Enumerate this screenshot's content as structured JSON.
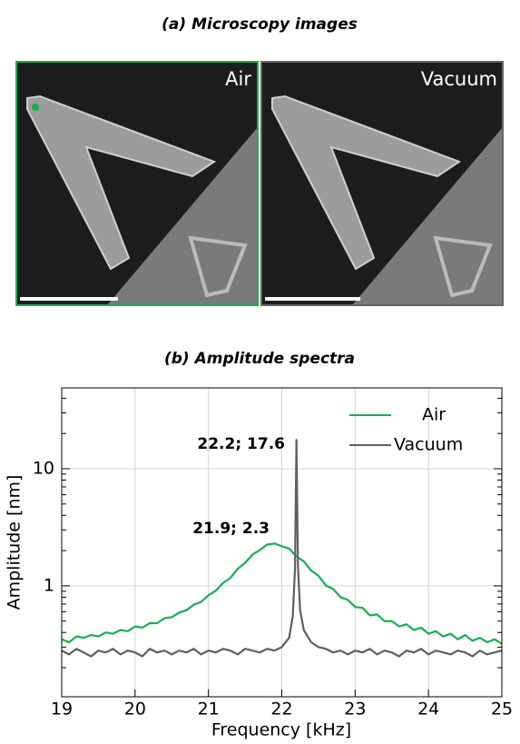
{
  "panel_a": {
    "title": "(a) Microscopy images",
    "labels": [
      "Air",
      "Vacuum"
    ]
  },
  "chart_data": {
    "type": "line",
    "title": "(b) Amplitude spectra",
    "xlabel": "Frequency [kHz]",
    "ylabel": "Amplitude [nm]",
    "xlim": [
      19,
      25
    ],
    "xticks": [
      19,
      20,
      21,
      22,
      23,
      24,
      25
    ],
    "ylim": [
      0.113,
      49
    ],
    "yticks": [
      1,
      10
    ],
    "yscale": "log",
    "yminor_ticks": [
      0.2,
      0.3,
      0.4,
      0.5,
      0.6,
      0.7,
      0.8,
      0.9,
      2,
      3,
      4,
      5,
      6,
      7,
      8,
      9,
      20,
      30,
      40
    ],
    "grid": true,
    "legend": "upper right",
    "series": [
      {
        "name": "Air",
        "color": "#1aae54",
        "x": [
          19.0,
          19.1,
          19.2,
          19.3,
          19.4,
          19.5,
          19.6,
          19.7,
          19.8,
          19.9,
          20.0,
          20.1,
          20.2,
          20.3,
          20.4,
          20.5,
          20.6,
          20.7,
          20.8,
          20.9,
          21.0,
          21.1,
          21.2,
          21.3,
          21.4,
          21.5,
          21.6,
          21.7,
          21.8,
          21.9,
          22.0,
          22.1,
          22.2,
          22.3,
          22.4,
          22.5,
          22.6,
          22.7,
          22.8,
          22.9,
          23.0,
          23.1,
          23.2,
          23.3,
          23.4,
          23.5,
          23.6,
          23.7,
          23.8,
          23.9,
          24.0,
          24.1,
          24.2,
          24.3,
          24.4,
          24.5,
          24.6,
          24.7,
          24.8,
          24.9,
          25.0
        ],
        "values": [
          0.35,
          0.33,
          0.37,
          0.36,
          0.38,
          0.37,
          0.4,
          0.39,
          0.42,
          0.41,
          0.45,
          0.44,
          0.48,
          0.48,
          0.53,
          0.54,
          0.59,
          0.62,
          0.69,
          0.73,
          0.83,
          0.91,
          1.06,
          1.17,
          1.4,
          1.57,
          1.85,
          2.02,
          2.25,
          2.3,
          2.18,
          2.08,
          1.78,
          1.62,
          1.35,
          1.22,
          1.01,
          0.94,
          0.8,
          0.76,
          0.66,
          0.65,
          0.56,
          0.57,
          0.5,
          0.5,
          0.45,
          0.47,
          0.42,
          0.44,
          0.39,
          0.41,
          0.37,
          0.39,
          0.35,
          0.38,
          0.34,
          0.36,
          0.33,
          0.35,
          0.32
        ]
      },
      {
        "name": "Vacuum",
        "color": "#5f5f5f",
        "x": [
          19.0,
          19.1,
          19.2,
          19.3,
          19.4,
          19.5,
          19.6,
          19.7,
          19.8,
          19.9,
          20.0,
          20.1,
          20.2,
          20.3,
          20.4,
          20.5,
          20.6,
          20.7,
          20.8,
          20.9,
          21.0,
          21.1,
          21.2,
          21.3,
          21.4,
          21.5,
          21.6,
          21.7,
          21.8,
          21.9,
          22.0,
          22.1,
          22.15,
          22.18,
          22.2,
          22.22,
          22.25,
          22.3,
          22.4,
          22.5,
          22.6,
          22.7,
          22.8,
          22.9,
          23.0,
          23.1,
          23.2,
          23.3,
          23.4,
          23.5,
          23.6,
          23.7,
          23.8,
          23.9,
          24.0,
          24.1,
          24.2,
          24.3,
          24.4,
          24.5,
          24.6,
          24.7,
          24.8,
          24.9,
          25.0
        ],
        "values": [
          0.28,
          0.26,
          0.29,
          0.27,
          0.25,
          0.28,
          0.27,
          0.29,
          0.26,
          0.28,
          0.27,
          0.25,
          0.29,
          0.27,
          0.28,
          0.26,
          0.28,
          0.27,
          0.29,
          0.26,
          0.28,
          0.27,
          0.29,
          0.28,
          0.26,
          0.29,
          0.28,
          0.27,
          0.29,
          0.28,
          0.3,
          0.36,
          0.55,
          1.4,
          17.6,
          1.5,
          0.62,
          0.42,
          0.33,
          0.3,
          0.29,
          0.27,
          0.28,
          0.26,
          0.28,
          0.27,
          0.29,
          0.26,
          0.28,
          0.27,
          0.25,
          0.28,
          0.27,
          0.29,
          0.26,
          0.28,
          0.27,
          0.26,
          0.28,
          0.27,
          0.25,
          0.28,
          0.26,
          0.27,
          0.28
        ]
      }
    ],
    "annotations": [
      {
        "text": "22.2; 17.6"
      },
      {
        "text": "21.9; 2.3"
      }
    ]
  }
}
